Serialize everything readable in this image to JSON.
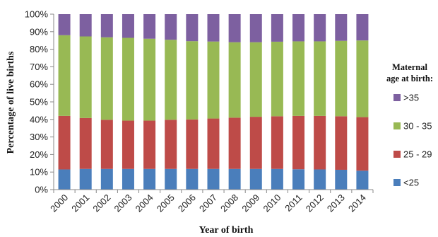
{
  "chart_data": {
    "type": "bar",
    "stacked": true,
    "xlabel": "Year of birth",
    "ylabel": "Percentage of live births",
    "ylim": [
      0,
      100
    ],
    "yticks": [
      "0%",
      "10%",
      "20%",
      "30%",
      "40%",
      "50%",
      "60%",
      "70%",
      "80%",
      "90%",
      "100%"
    ],
    "categories": [
      "2000",
      "2001",
      "2002",
      "2003",
      "2004",
      "2005",
      "2006",
      "2007",
      "2008",
      "2009",
      "2010",
      "2011",
      "2012",
      "2013",
      "2014"
    ],
    "grid": false,
    "legend": {
      "title_lines": [
        "Maternal",
        "age at birth:"
      ],
      "placement": "right",
      "order": [
        ">35",
        "30 - 35",
        "25 - 29",
        "<25"
      ]
    },
    "series": [
      {
        "name": "<25",
        "color": "#4a7ebb",
        "values": [
          11.5,
          11.8,
          11.8,
          11.8,
          11.8,
          11.8,
          11.8,
          11.8,
          11.8,
          11.8,
          11.8,
          11.6,
          11.5,
          11.3,
          10.8
        ]
      },
      {
        "name": "25 - 29",
        "color": "#be4b48",
        "values": [
          30.5,
          29.0,
          28.0,
          27.5,
          27.5,
          28.0,
          28.2,
          28.7,
          29.2,
          29.7,
          30.0,
          30.4,
          30.5,
          30.5,
          30.5
        ]
      },
      {
        "name": "30 - 35",
        "color": "#98b954",
        "values": [
          46.0,
          46.5,
          47.0,
          47.2,
          46.7,
          45.6,
          44.6,
          43.9,
          43.0,
          42.5,
          42.5,
          42.5,
          42.5,
          43.0,
          43.7
        ]
      },
      {
        "name": ">35",
        "color": "#7d60a0",
        "values": [
          12.0,
          12.7,
          13.2,
          13.5,
          14.0,
          14.6,
          15.4,
          15.6,
          16.0,
          16.0,
          15.7,
          15.5,
          15.5,
          15.2,
          15.0
        ]
      }
    ]
  }
}
